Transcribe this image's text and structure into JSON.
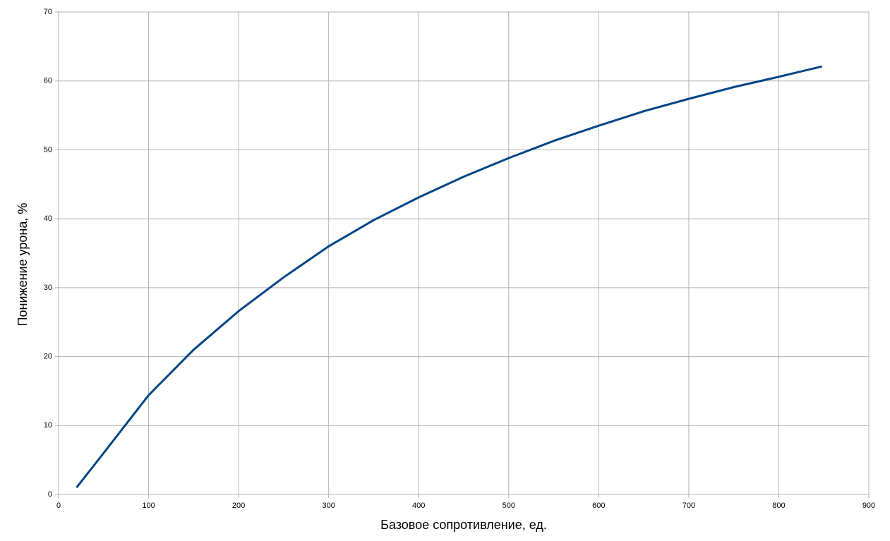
{
  "chart_data": {
    "type": "line",
    "x_label": "Базовое сопротивление, ед.",
    "y_label": "Понижение урона, %",
    "x": [
      20,
      50,
      100,
      150,
      200,
      250,
      300,
      350,
      400,
      450,
      500,
      550,
      600,
      650,
      700,
      750,
      800,
      848
    ],
    "series": [
      {
        "name": "Понижение урона",
        "color": "#004586",
        "values": [
          1,
          6,
          14.4,
          21,
          26.6,
          31.5,
          36,
          39.8,
          43.1,
          46.1,
          48.8,
          51.3,
          53.5,
          55.6,
          57.4,
          59.1,
          60.6,
          62.1
        ]
      }
    ],
    "xlim": [
      0,
      900
    ],
    "xticks": [
      0,
      100,
      200,
      300,
      400,
      500,
      600,
      700,
      800,
      900
    ],
    "ylim": [
      0,
      70
    ],
    "yticks": [
      0,
      10,
      20,
      30,
      40,
      50,
      60,
      70
    ],
    "grid": true
  }
}
